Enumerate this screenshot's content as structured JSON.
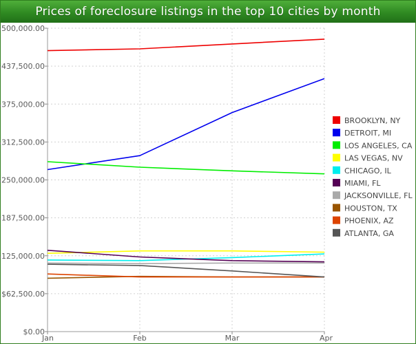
{
  "chart_data": {
    "type": "line",
    "title": "Prices of foreclosure listings in the top 10 cities by month",
    "xlabel": "",
    "ylabel": "",
    "categories": [
      "Jan",
      "Feb",
      "Mar",
      "Apr"
    ],
    "ylim": [
      0,
      500000
    ],
    "yticks": [
      0,
      62500,
      125000,
      187500,
      250000,
      312500,
      375000,
      437500,
      500000
    ],
    "ytick_labels": [
      "$0.00",
      "$62,500.00",
      "$125,000.00",
      "$187,500.00",
      "$250,000.00",
      "$312,500.00",
      "$375,000.00",
      "$437,500.00",
      "$500,000.00"
    ],
    "grid": true,
    "legend_position": "right",
    "series": [
      {
        "name": "BROOKLYN, NY",
        "color": "#ee0000",
        "values": [
          463000,
          466000,
          474000,
          482000
        ]
      },
      {
        "name": "DETROIT, MI",
        "color": "#0000ee",
        "values": [
          267000,
          290000,
          361000,
          417000
        ]
      },
      {
        "name": "LOS ANGELES, CA",
        "color": "#00ee00",
        "values": [
          280000,
          271000,
          265000,
          260000
        ]
      },
      {
        "name": "LAS VEGAS, NV",
        "color": "#ffff00",
        "values": [
          129000,
          133000,
          133000,
          131000
        ]
      },
      {
        "name": "CHICAGO, IL",
        "color": "#00eeee",
        "values": [
          118000,
          117000,
          122000,
          128000
        ]
      },
      {
        "name": "MIAMI, FL",
        "color": "#550055",
        "values": [
          134000,
          123000,
          117000,
          115000
        ]
      },
      {
        "name": "JACKSONVILLE, FL",
        "color": "#aaaaaa",
        "values": [
          113000,
          112000,
          113000,
          113000
        ]
      },
      {
        "name": "HOUSTON, TX",
        "color": "#995500",
        "values": [
          88000,
          91000,
          90000,
          90000
        ]
      },
      {
        "name": "PHOENIX, AZ",
        "color": "#dd4400",
        "values": [
          95000,
          90000,
          90000,
          90000
        ]
      },
      {
        "name": "ATLANTA, GA",
        "color": "#555555",
        "values": [
          111000,
          109000,
          100000,
          90000
        ]
      }
    ]
  }
}
